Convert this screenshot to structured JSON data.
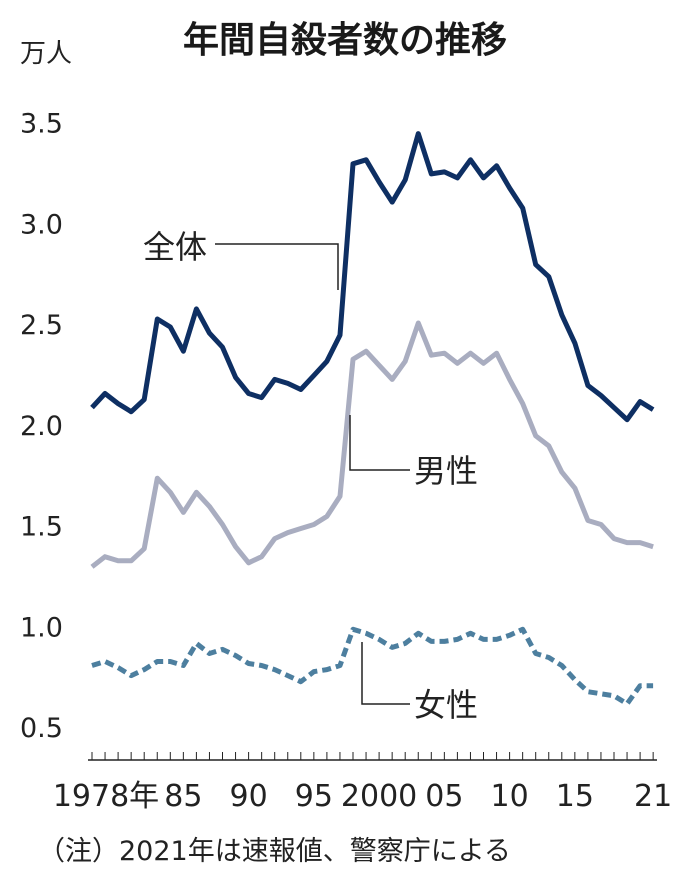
{
  "chart_data": {
    "type": "line",
    "title": "年間自殺者数の推移",
    "ylabel": "万人",
    "xlabel": "",
    "ylim": [
      0.4,
      3.7
    ],
    "xlim": [
      1978,
      2021
    ],
    "yticks": [
      "0.5",
      "1.0",
      "1.5",
      "2.0",
      "2.5",
      "3.0",
      "3.5"
    ],
    "ytick_values": [
      0.5,
      1.0,
      1.5,
      2.0,
      2.5,
      3.0,
      3.5
    ],
    "xticks": [
      {
        "year": 1978,
        "label": "1978年"
      },
      {
        "year": 1985,
        "label": "85"
      },
      {
        "year": 1990,
        "label": "90"
      },
      {
        "year": 1995,
        "label": "95"
      },
      {
        "year": 2000,
        "label": "2000"
      },
      {
        "year": 2005,
        "label": "05"
      },
      {
        "year": 2010,
        "label": "10"
      },
      {
        "year": 2015,
        "label": "15"
      },
      {
        "year": 2021,
        "label": "21"
      }
    ],
    "x": [
      1978,
      1979,
      1980,
      1981,
      1982,
      1983,
      1984,
      1985,
      1986,
      1987,
      1988,
      1989,
      1990,
      1991,
      1992,
      1993,
      1994,
      1995,
      1996,
      1997,
      1998,
      1999,
      2000,
      2001,
      2002,
      2003,
      2004,
      2005,
      2006,
      2007,
      2008,
      2009,
      2010,
      2011,
      2012,
      2013,
      2014,
      2015,
      2016,
      2017,
      2018,
      2019,
      2020,
      2021
    ],
    "series": [
      {
        "name": "全体",
        "color": "#0e2f63",
        "dash": false,
        "values": [
          2.08,
          2.15,
          2.1,
          2.06,
          2.12,
          2.52,
          2.48,
          2.36,
          2.57,
          2.45,
          2.38,
          2.23,
          2.15,
          2.13,
          2.22,
          2.2,
          2.17,
          2.24,
          2.31,
          2.44,
          3.29,
          3.31,
          3.2,
          3.1,
          3.21,
          3.44,
          3.24,
          3.25,
          3.22,
          3.31,
          3.22,
          3.28,
          3.17,
          3.07,
          2.79,
          2.73,
          2.54,
          2.4,
          2.19,
          2.14,
          2.08,
          2.02,
          2.11,
          2.07
        ]
      },
      {
        "name": "男性",
        "color": "#a9adc0",
        "dash": false,
        "values": [
          1.29,
          1.34,
          1.32,
          1.32,
          1.38,
          1.73,
          1.66,
          1.56,
          1.66,
          1.59,
          1.5,
          1.39,
          1.31,
          1.34,
          1.43,
          1.46,
          1.48,
          1.5,
          1.54,
          1.64,
          2.32,
          2.36,
          2.29,
          2.22,
          2.31,
          2.5,
          2.34,
          2.35,
          2.3,
          2.35,
          2.3,
          2.35,
          2.22,
          2.1,
          1.94,
          1.89,
          1.76,
          1.68,
          1.52,
          1.5,
          1.43,
          1.41,
          1.41,
          1.39
        ]
      },
      {
        "name": "女性",
        "color": "#4d7f9f",
        "dash": true,
        "values": [
          0.8,
          0.82,
          0.79,
          0.75,
          0.78,
          0.82,
          0.82,
          0.8,
          0.91,
          0.86,
          0.88,
          0.85,
          0.81,
          0.8,
          0.78,
          0.75,
          0.72,
          0.77,
          0.78,
          0.8,
          0.98,
          0.96,
          0.93,
          0.89,
          0.91,
          0.96,
          0.92,
          0.92,
          0.93,
          0.96,
          0.93,
          0.93,
          0.95,
          0.98,
          0.86,
          0.84,
          0.8,
          0.73,
          0.67,
          0.66,
          0.65,
          0.61,
          0.7,
          0.7
        ]
      }
    ],
    "note": "（注）2021年は速報値、警察庁による"
  }
}
